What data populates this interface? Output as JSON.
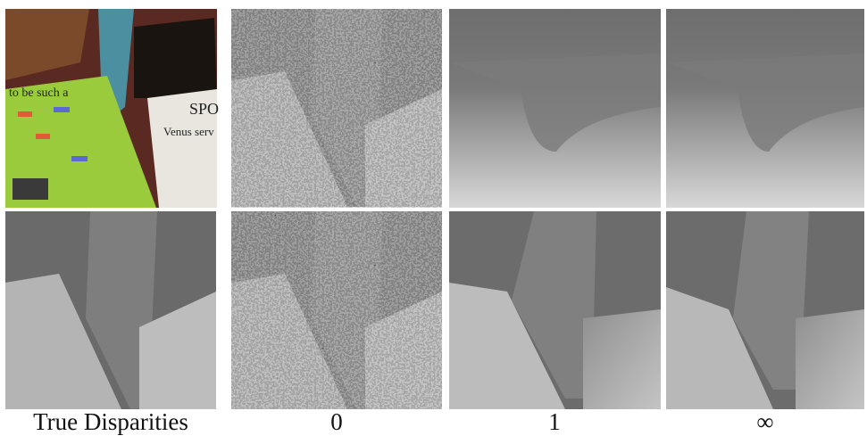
{
  "photo_text": [
    "to be such a",
    "SPO",
    "Venus serv"
  ],
  "captions": [
    "True Disparities",
    "0",
    "1",
    "∞"
  ]
}
